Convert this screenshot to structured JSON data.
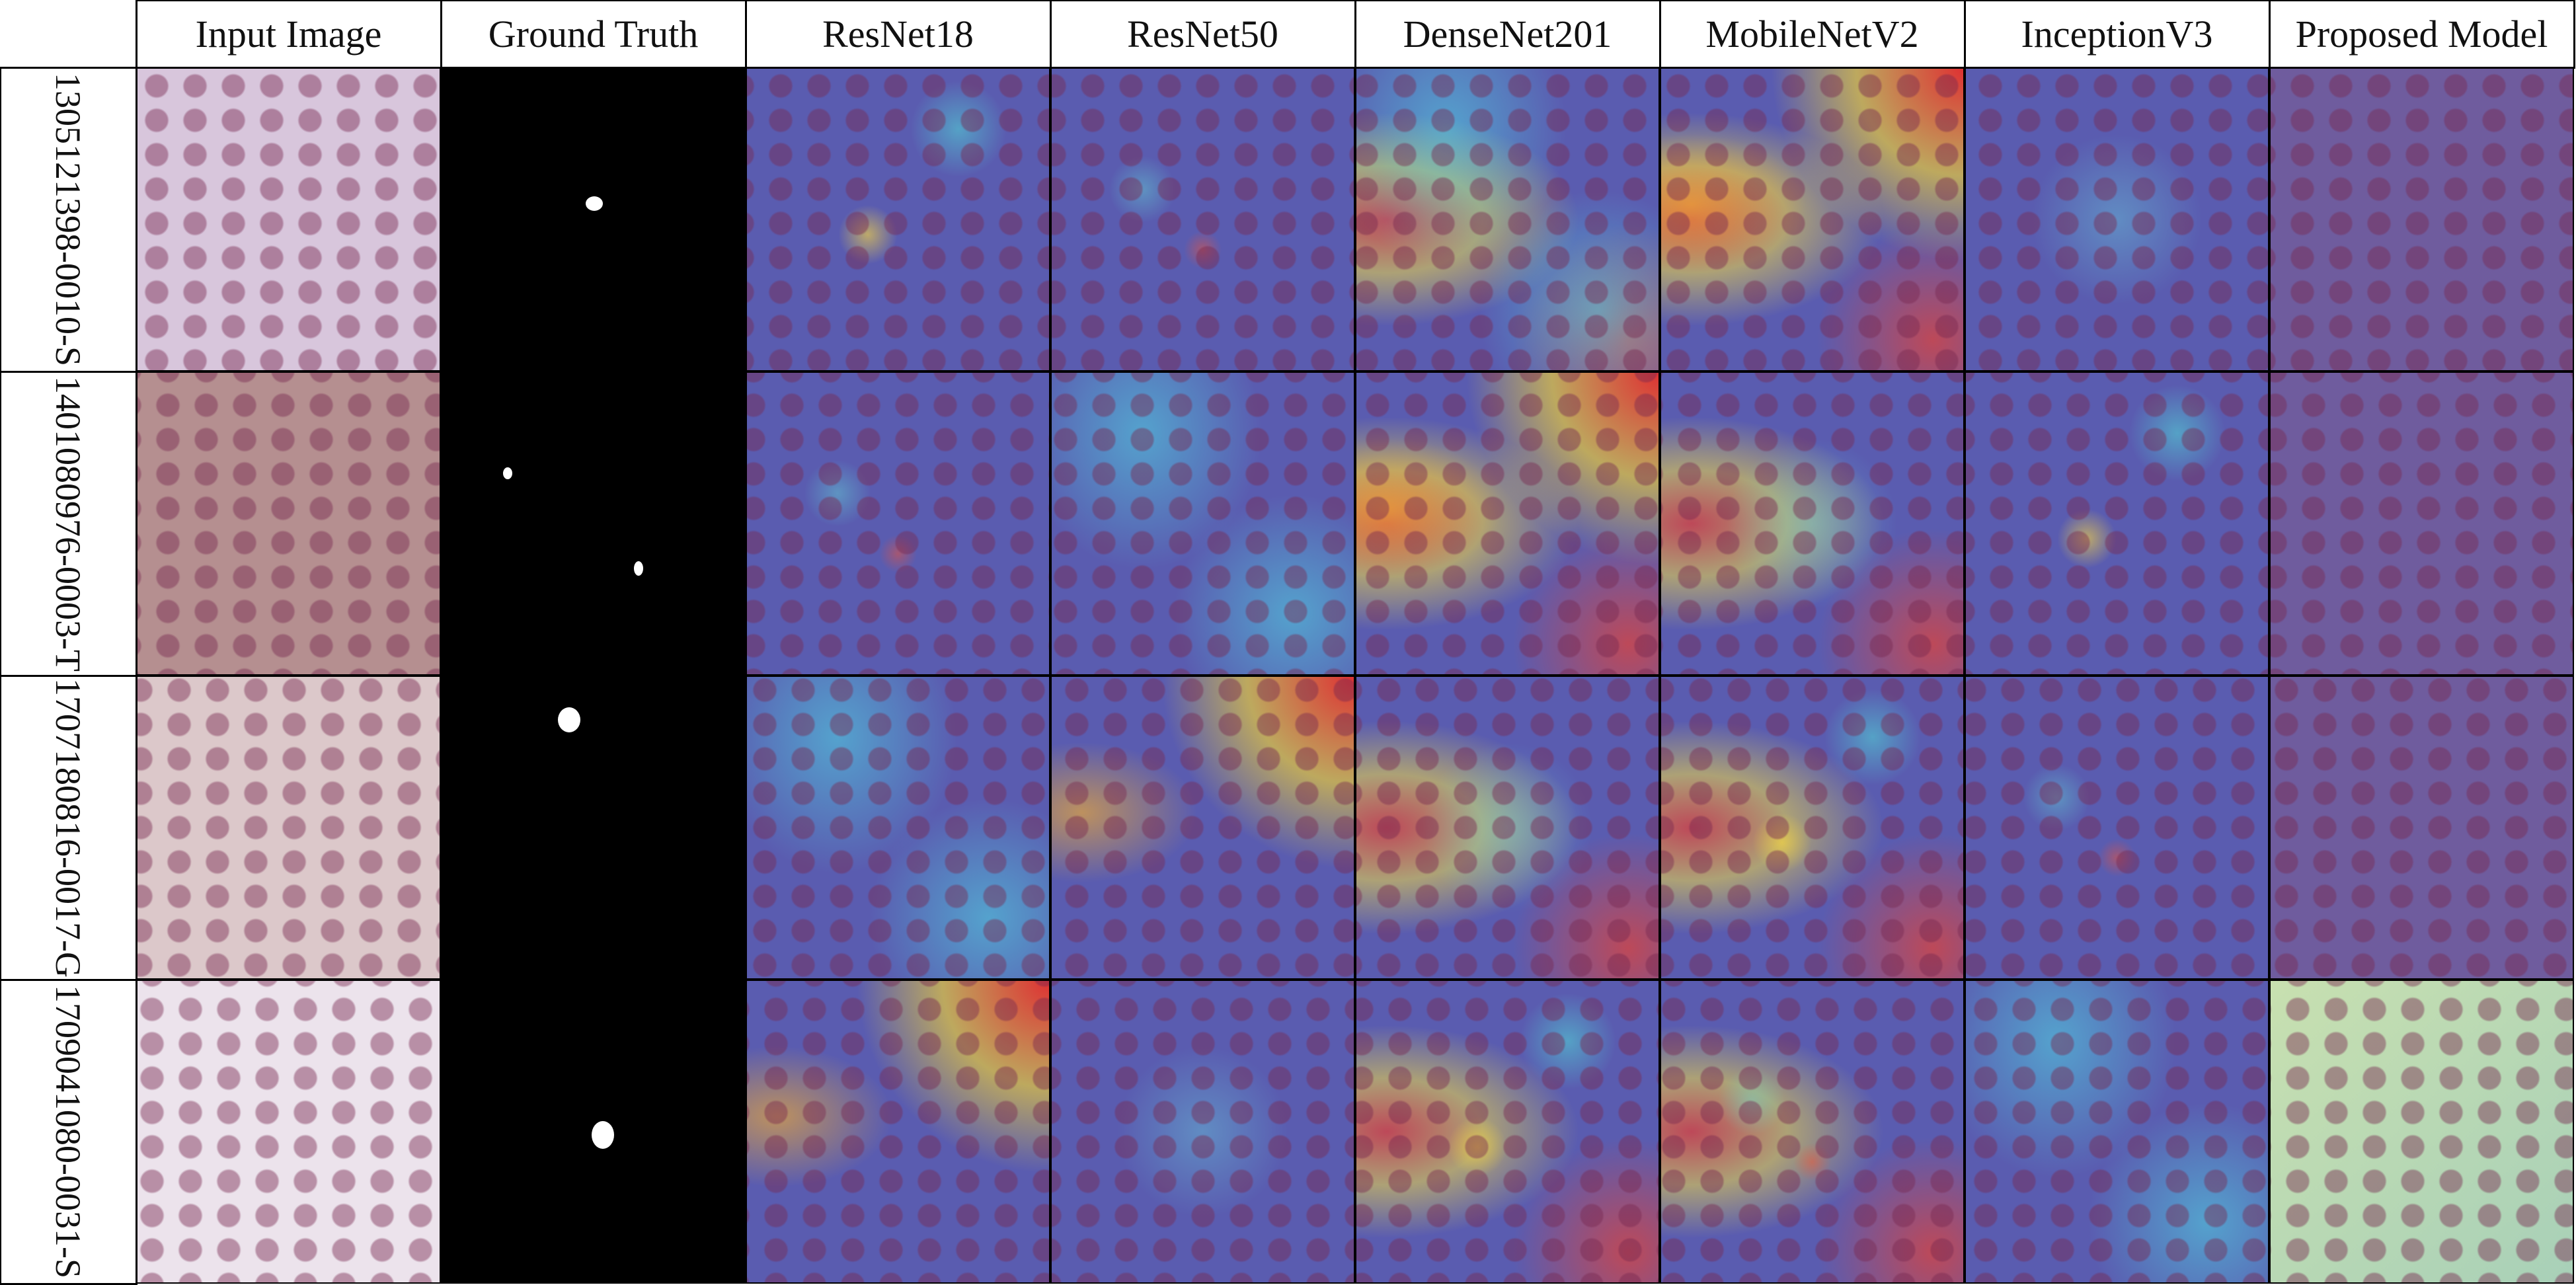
{
  "header": {
    "corner": "",
    "columns": [
      "Input Image",
      "Ground Truth",
      "ResNet18",
      "ResNet50",
      "DenseNet201",
      "MobileNetV2",
      "InceptionV3",
      "Proposed Model"
    ]
  },
  "rows": [
    "1305121398-0010-S",
    "1401080976-0003-T",
    "1707180816-0017-G",
    "1709041080-0031-S"
  ]
}
